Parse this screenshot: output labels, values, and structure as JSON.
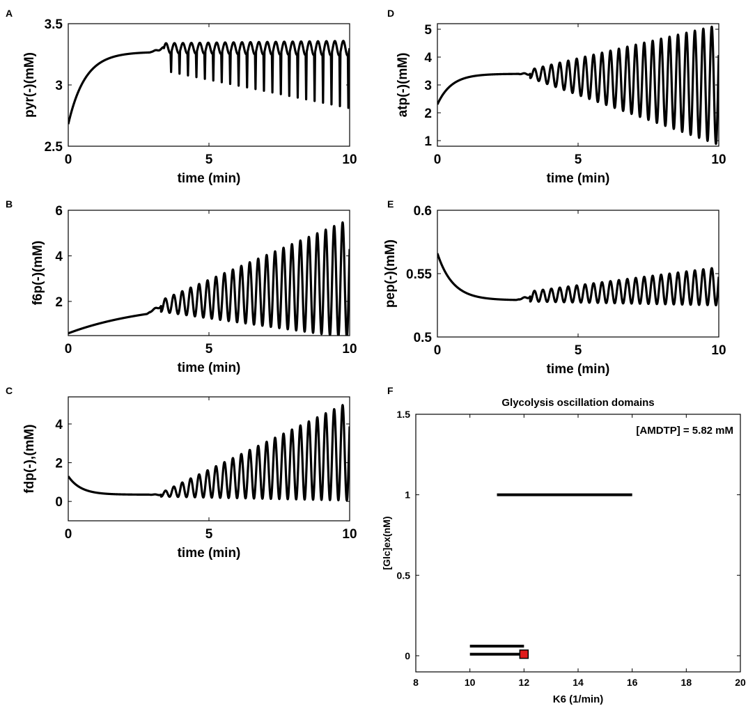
{
  "chart_data": [
    {
      "panel": "A",
      "type": "line",
      "xlabel": "time (min)",
      "ylabel": "pyr(-)(mM)",
      "xlim": [
        0,
        10
      ],
      "ylim": [
        2.5,
        3.5
      ],
      "xticks": [
        0,
        5,
        10
      ],
      "yticks": [
        2.5,
        3,
        3.5
      ],
      "ytick_labels": [
        "2.5",
        "3",
        "3.5"
      ],
      "series": [
        {
          "name": "pyr",
          "start": 2.68,
          "plateau": 3.27,
          "rise_tau": 0.6,
          "osc_onset": 3.4,
          "period": 0.3,
          "center": 3.3,
          "amp_start": 0.04,
          "amp_end": 0.06,
          "dip_start": 0.15,
          "dip_end": 0.44,
          "spiky": true
        }
      ]
    },
    {
      "panel": "B",
      "type": "line",
      "xlabel": "time (min)",
      "ylabel": "f6p(-)(mM)",
      "xlim": [
        0,
        10
      ],
      "ylim": [
        0.5,
        6
      ],
      "xticks": [
        0,
        5,
        10
      ],
      "yticks": [
        2,
        4,
        6
      ],
      "ytick_labels": [
        "2",
        "4",
        "6"
      ],
      "series": [
        {
          "name": "f6p",
          "start": 0.6,
          "plateau": 2.0,
          "rise_tau": 3.0,
          "osc_onset": 3.3,
          "period": 0.3,
          "center_start": 1.8,
          "center_end": 3.0,
          "amp_start": 0.25,
          "amp_end": 2.6,
          "spiky": false
        }
      ]
    },
    {
      "panel": "C",
      "type": "line",
      "xlabel": "time (min)",
      "ylabel": "fdp(-),(mM)",
      "xlim": [
        0,
        10
      ],
      "ylim": [
        -1,
        5.4
      ],
      "xticks": [
        0,
        5,
        10
      ],
      "yticks": [
        0,
        2,
        4
      ],
      "ytick_labels": [
        "0",
        "2",
        "4"
      ],
      "series": [
        {
          "name": "fdp",
          "start": 1.3,
          "plateau": 0.35,
          "rise_tau": 0.45,
          "osc_onset": 3.3,
          "period": 0.3,
          "center_start": 0.35,
          "center_end": 2.6,
          "amp_start": 0.1,
          "amp_end": 2.55,
          "spiky": false
        }
      ]
    },
    {
      "panel": "D",
      "type": "line",
      "xlabel": "time (min)",
      "ylabel": "atp(-)(mM)",
      "xlim": [
        0,
        10
      ],
      "ylim": [
        0.8,
        5.2
      ],
      "xticks": [
        0,
        5,
        10
      ],
      "yticks": [
        1,
        2,
        3,
        4,
        5
      ],
      "ytick_labels": [
        "1",
        "2",
        "3",
        "4",
        "5"
      ],
      "series": [
        {
          "name": "atp",
          "start": 2.3,
          "plateau": 3.4,
          "rise_tau": 0.5,
          "osc_onset": 3.3,
          "period": 0.3,
          "center_start": 3.4,
          "center_end": 3.0,
          "amp_start": 0.15,
          "amp_end": 2.15,
          "spiky": false
        }
      ]
    },
    {
      "panel": "E",
      "type": "line",
      "xlabel": "time (min)",
      "ylabel": "pep(-)(mM)",
      "xlim": [
        0,
        10
      ],
      "ylim": [
        0.5,
        0.6
      ],
      "xticks": [
        0,
        5,
        10
      ],
      "yticks": [
        0.5,
        0.55,
        0.6
      ],
      "ytick_labels": [
        "0.5",
        "0.55",
        "0.6"
      ],
      "series": [
        {
          "name": "pep",
          "start": 0.566,
          "plateau": 0.529,
          "rise_tau": 0.55,
          "osc_onset": 3.3,
          "period": 0.3,
          "center_start": 0.532,
          "center_end": 0.54,
          "amp_start": 0.004,
          "amp_end": 0.015,
          "spiky": false
        }
      ]
    },
    {
      "panel": "F",
      "type": "segments",
      "title": "Glycolysis oscillation domains",
      "annotation": "[AMDTP] = 5.82 mM",
      "xlabel": "K6 (1/min)",
      "ylabel": "[Glc]ex(nM)",
      "xlim": [
        8,
        20
      ],
      "ylim": [
        -0.1,
        1.5
      ],
      "xticks": [
        8,
        10,
        12,
        14,
        16,
        18,
        20
      ],
      "yticks": [
        0,
        0.5,
        1,
        1.5
      ],
      "ytick_labels": [
        "0",
        "0.5",
        "1",
        "1.5"
      ],
      "segments": [
        {
          "x": [
            11,
            16
          ],
          "y": 1.0
        },
        {
          "x": [
            10,
            12
          ],
          "y": 0.06
        },
        {
          "x": [
            10,
            12
          ],
          "y": 0.01
        }
      ],
      "marker": {
        "x": 12,
        "y": 0.01,
        "color": "#e01b1b",
        "shape": "square"
      }
    }
  ]
}
